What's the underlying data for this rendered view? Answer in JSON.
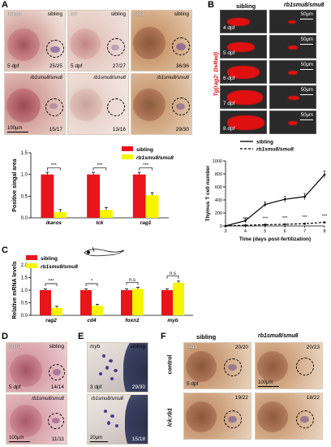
{
  "panel_letters": {
    "a": "A",
    "b": "B",
    "c": "C",
    "d": "D",
    "e": "E",
    "f": "F"
  },
  "panel_a": {
    "tiles": [
      {
        "gene": "ikaros",
        "genotype": "sibling",
        "stage": "5 dpf",
        "count": "25/25"
      },
      {
        "gene": "lck",
        "genotype": "sibling",
        "stage": "5 dpf",
        "count": "27/27"
      },
      {
        "gene": "rag1",
        "genotype": "sibling",
        "stage": "",
        "count": "36/36"
      },
      {
        "gene": "",
        "genotype": "rb1smu8/smu8",
        "scale": "100μm",
        "count": "15/17"
      },
      {
        "gene": "",
        "genotype": "rb1smu8/smu8",
        "count": "13/16"
      },
      {
        "gene": "",
        "genotype": "rb1smu8/smu8",
        "count": "29/30"
      }
    ]
  },
  "panel_b": {
    "col_headers": [
      "sibling",
      "rb1smu8/smu8"
    ],
    "row_label": "Tg(rag2: DsRed)",
    "stages": [
      "4 dpf",
      "5 dpf",
      "6 dpf",
      "7 dpf",
      "8 dpf"
    ],
    "scale": "50μm"
  },
  "chart_a": {
    "type": "bar",
    "ylabel": "Positive singal area",
    "categories": [
      "ikaros",
      "lck",
      "rag1"
    ],
    "yticks": [
      "0.0",
      "0.5",
      "1.0",
      "1.5"
    ],
    "ylim": [
      0,
      1.5
    ],
    "series": [
      {
        "name": "sibling",
        "color": "#e8151b",
        "values": [
          1.0,
          1.0,
          1.0
        ]
      },
      {
        "name": "rb1smu8/smu8",
        "color": "#f5f500",
        "values": [
          0.13,
          0.18,
          0.52
        ]
      }
    ],
    "sig": [
      "***",
      "***",
      "***"
    ]
  },
  "chart_b": {
    "type": "line",
    "ylabel": "Thymus T cell number",
    "xlabel": "Time (days post-fertilization)",
    "x": [
      3,
      4,
      5,
      6,
      7,
      8
    ],
    "yticks": [
      "0",
      "200",
      "400",
      "600",
      "800",
      "1000"
    ],
    "ylim": [
      0,
      1000
    ],
    "series": [
      {
        "name": "sibling",
        "values": [
          0,
          80,
          330,
          410,
          450,
          790
        ]
      },
      {
        "name": "rb1smu8/smu8",
        "values": [
          0,
          10,
          20,
          25,
          35,
          55
        ]
      }
    ],
    "sig": [
      "***",
      "***",
      "***",
      "***",
      "***"
    ]
  },
  "chart_c": {
    "type": "bar",
    "ylabel": "Relative mRNA levels",
    "categories": [
      "rag2",
      "cd4",
      "foxn1",
      "myb"
    ],
    "yticks": [
      "0.0",
      "0.5",
      "1.0",
      "1.5",
      "2.0"
    ],
    "ylim": [
      0,
      2.0
    ],
    "series": [
      {
        "name": "sibling",
        "color": "#e8151b",
        "values": [
          1.0,
          1.0,
          1.0,
          1.0
        ]
      },
      {
        "name": "rb1smu8/smu8",
        "color": "#f5f500",
        "values": [
          0.3,
          0.38,
          1.05,
          1.3
        ]
      }
    ],
    "sig": [
      "***",
      "*",
      "n.s",
      "n.s"
    ]
  },
  "panel_d": {
    "tiles": [
      {
        "gene": "foxn1",
        "genotype": "sibling",
        "stage": "5 dpf",
        "count": "14/14"
      },
      {
        "gene": "",
        "genotype": "rb1smu8/smu8",
        "scale": "100μm",
        "count": "11/11"
      }
    ]
  },
  "panel_e": {
    "tiles": [
      {
        "gene": "myb",
        "genotype": "sibling",
        "stage": "3 dpf",
        "count": "29/30"
      },
      {
        "gene": "",
        "genotype": "rb1smu8/smu8",
        "scale": "20μm",
        "count": "15/18"
      }
    ]
  },
  "panel_f": {
    "col_headers": [
      "sibling",
      "rb1smu8/smu8"
    ],
    "row_labels": [
      "control",
      "lck:rb1"
    ],
    "tiles": [
      {
        "gene": "rag1",
        "stage": "5 dpf",
        "count": "20/20"
      },
      {
        "gene": "",
        "scale": "100μm",
        "count": "20/23"
      },
      {
        "gene": "",
        "count": "19/22"
      },
      {
        "gene": "",
        "count": "18/22"
      }
    ]
  }
}
